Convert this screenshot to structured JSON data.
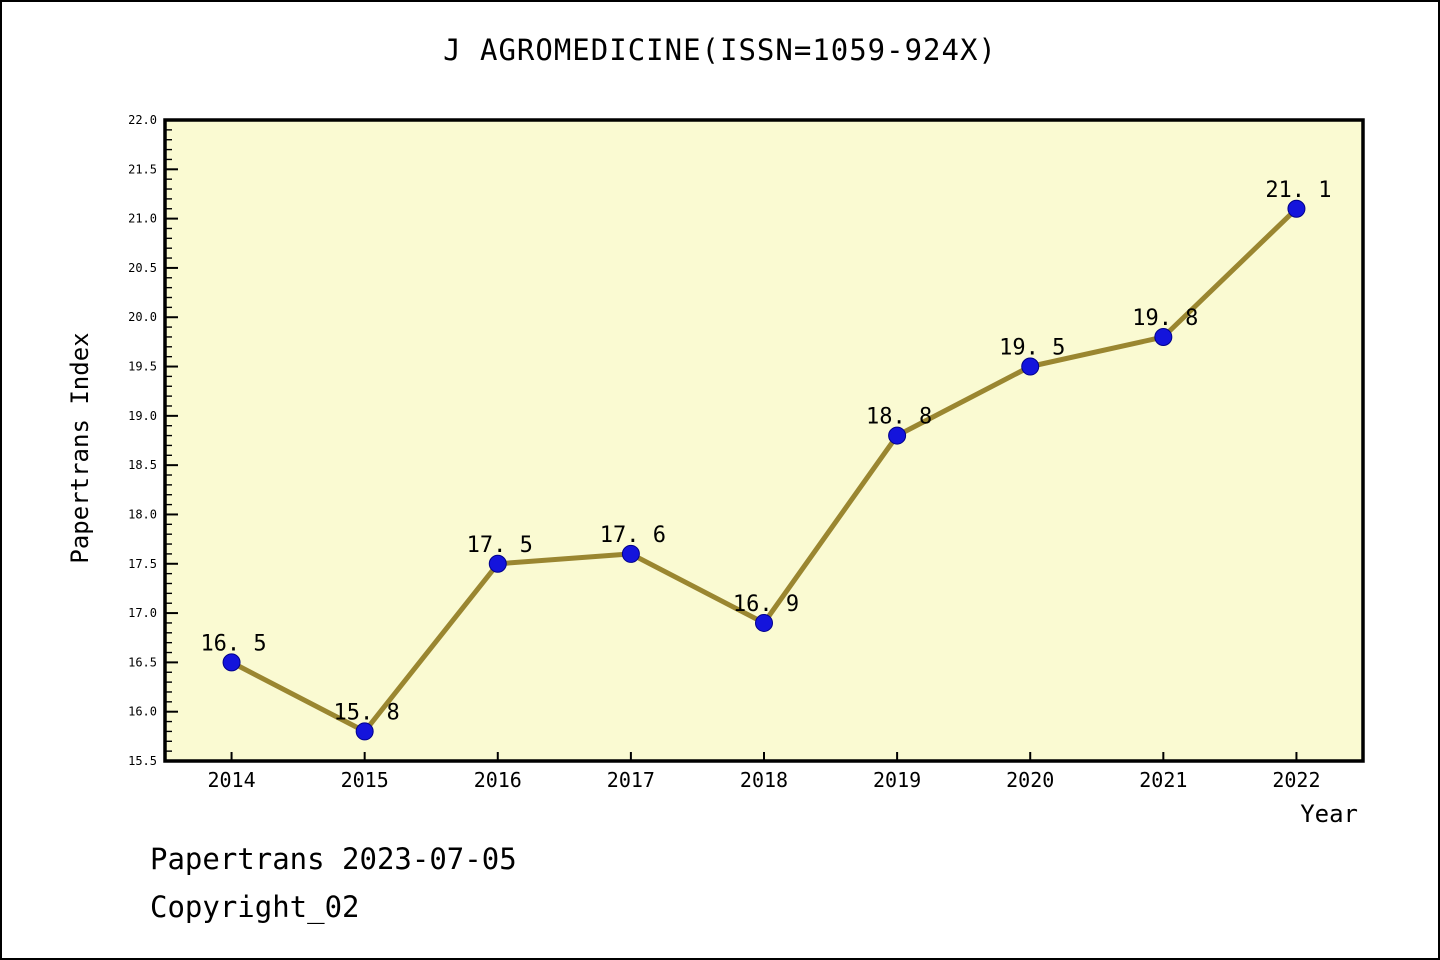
{
  "page": {
    "footer_line1": "Papertrans 2023-07-05",
    "footer_line2": "Copyright_02"
  },
  "chart_data": {
    "type": "line",
    "title": "J AGROMEDICINE(ISSN=1059-924X)",
    "xlabel": "Year",
    "ylabel": "Papertrans Index",
    "x": [
      2014,
      2015,
      2016,
      2017,
      2018,
      2019,
      2020,
      2021,
      2022
    ],
    "values": [
      16.5,
      15.8,
      17.5,
      17.6,
      16.9,
      18.8,
      19.5,
      19.8,
      21.1
    ],
    "point_labels": [
      "16. 5",
      "15. 8",
      "17. 5",
      "17. 6",
      "16. 9",
      "18. 8",
      "19. 5",
      "19. 8",
      "21. 1"
    ],
    "xlim": [
      2013.5,
      2022.5
    ],
    "ylim": [
      15.5,
      22.0
    ],
    "y_major_step": 0.5,
    "y_minor_step": 0.1,
    "grid": "off",
    "legend": "none",
    "colors": {
      "plot_bg": "#FAFAD2",
      "line": "#9A8630",
      "marker": "#1414DC",
      "marker_edge": "#00008B",
      "axis": "#000000",
      "text": "#000000"
    }
  }
}
